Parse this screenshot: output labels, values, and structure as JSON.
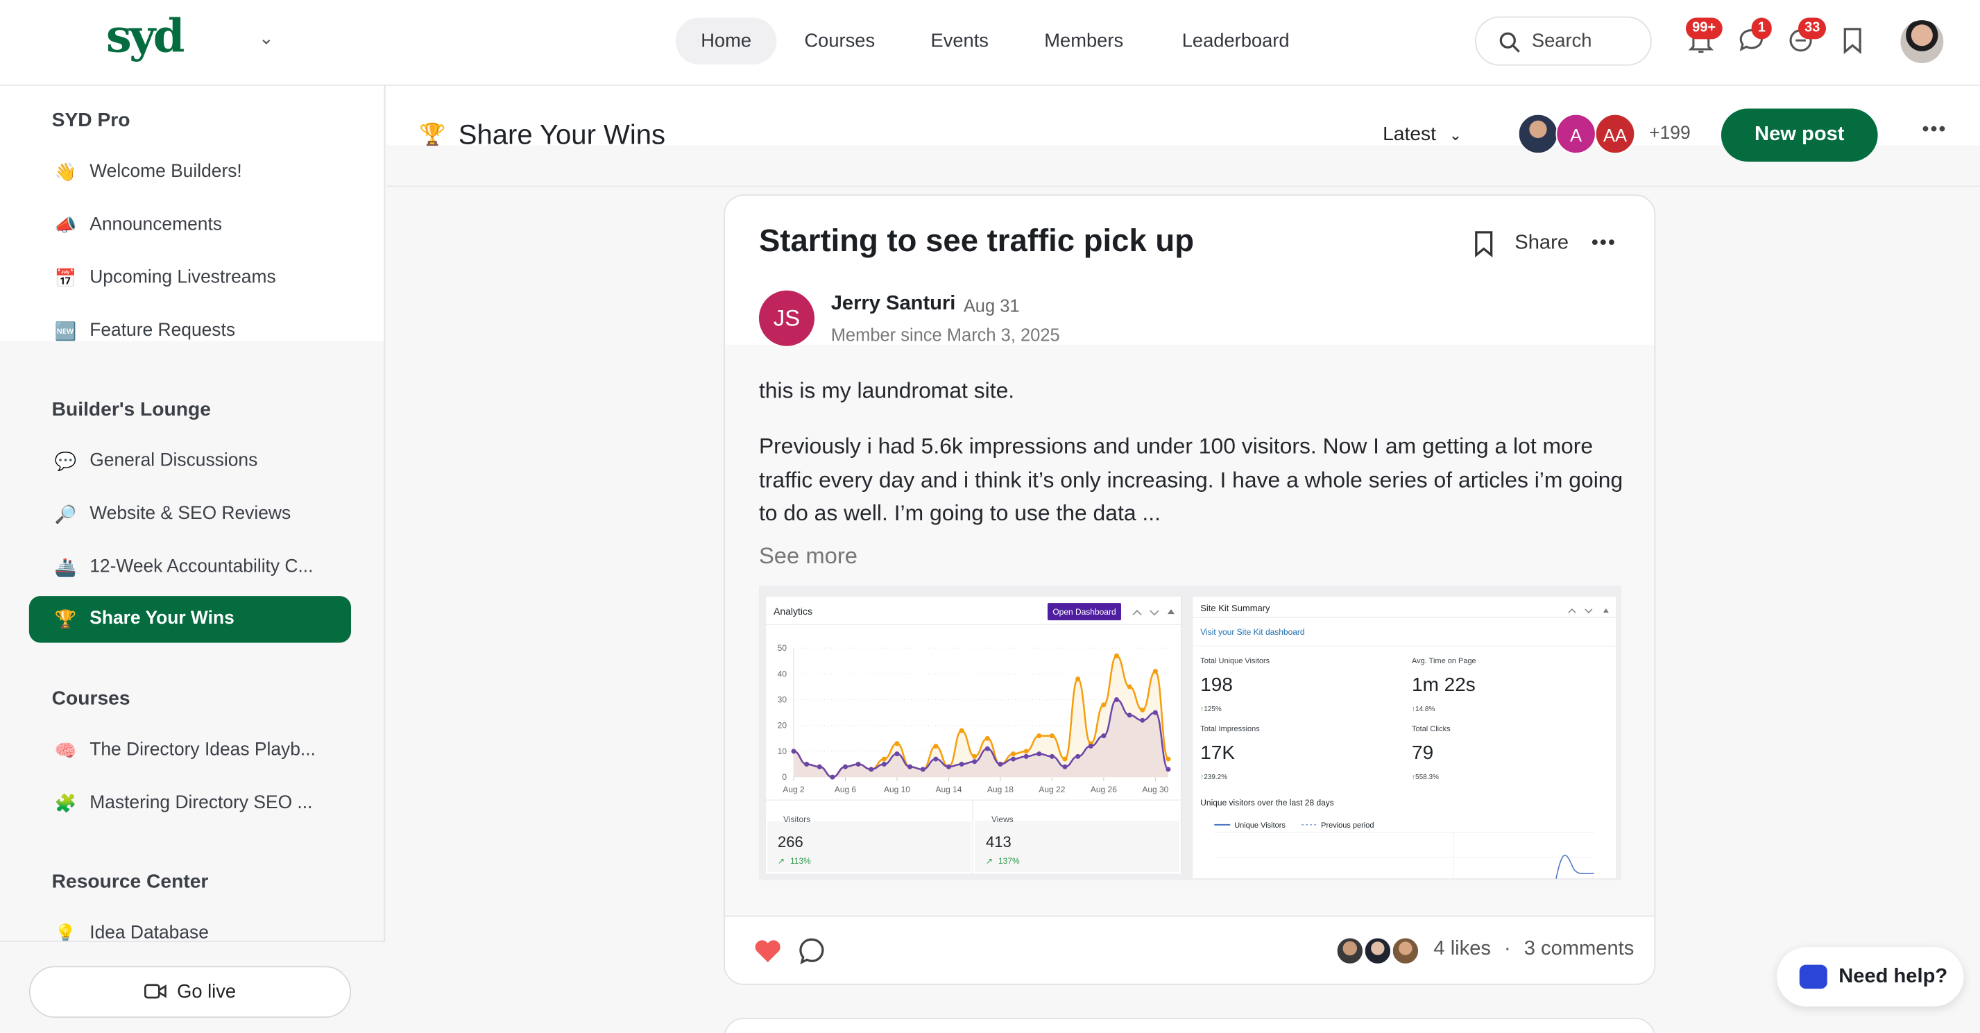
{
  "brand": {
    "logo": "syd",
    "accent": "#046c3f"
  },
  "nav": {
    "items": [
      {
        "label": "Home",
        "active": true
      },
      {
        "label": "Courses"
      },
      {
        "label": "Events"
      },
      {
        "label": "Members"
      },
      {
        "label": "Leaderboard"
      }
    ],
    "search_placeholder": "Search",
    "badges": {
      "notifications": "99+",
      "messages": "1",
      "chats": "33"
    }
  },
  "sidebar": {
    "sections": [
      {
        "title": "SYD Pro",
        "items": [
          {
            "icon": "👋",
            "label": "Welcome Builders!"
          },
          {
            "icon": "📣",
            "label": "Announcements"
          },
          {
            "icon": "📅",
            "label": "Upcoming Livestreams"
          },
          {
            "icon": "🆕",
            "label": "Feature Requests"
          }
        ]
      },
      {
        "title": "Builder's Lounge",
        "items": [
          {
            "icon": "💬",
            "label": "General Discussions"
          },
          {
            "icon": "🔎",
            "label": "Website & SEO Reviews"
          },
          {
            "icon": "🚢",
            "label": "12-Week Accountability C..."
          },
          {
            "icon": "🏆",
            "label": "Share Your Wins",
            "active": true
          }
        ]
      },
      {
        "title": "Courses",
        "items": [
          {
            "icon": "🧠",
            "label": "The Directory Ideas Playb..."
          },
          {
            "icon": "🧩",
            "label": "Mastering Directory SEO ..."
          }
        ]
      },
      {
        "title": "Resource Center",
        "items": [
          {
            "icon": "💡",
            "label": "Idea Database"
          }
        ]
      }
    ],
    "go_live": "Go live"
  },
  "space": {
    "icon": "🏆",
    "title": "Share Your Wins",
    "sort": "Latest",
    "member_avatars": [
      "A",
      "AA"
    ],
    "member_count": "+199",
    "new_post": "New post"
  },
  "post": {
    "title": "Starting to see traffic pick up",
    "share": "Share",
    "author": {
      "initials": "JS",
      "name": "Jerry Santuri",
      "date": "Aug 31",
      "member_since": "Member since March 3, 2025"
    },
    "body": [
      "this is my laundromat site.",
      "Previously i had 5.6k impressions and under 100 visitors. Now I am getting a lot more traffic every day and i think it’s only increasing. I have a whole series of articles i’m going to do as well. I’m going to use the data ..."
    ],
    "see_more": "See more",
    "likes": "4 likes",
    "comments": "3 comments",
    "image": {
      "analytics": {
        "title": "Analytics",
        "button": "Open Dashboard",
        "chart_data": {
          "type": "area",
          "x": [
            "Aug 2",
            "Aug 3",
            "Aug 4",
            "Aug 5",
            "Aug 6",
            "Aug 7",
            "Aug 8",
            "Aug 9",
            "Aug 10",
            "Aug 11",
            "Aug 12",
            "Aug 13",
            "Aug 14",
            "Aug 15",
            "Aug 16",
            "Aug 17",
            "Aug 18",
            "Aug 19",
            "Aug 20",
            "Aug 21",
            "Aug 22",
            "Aug 23",
            "Aug 24",
            "Aug 25",
            "Aug 26",
            "Aug 27",
            "Aug 28",
            "Aug 29",
            "Aug 30",
            "Aug 31"
          ],
          "xticks": [
            "Aug 2",
            "Aug 6",
            "Aug 10",
            "Aug 14",
            "Aug 18",
            "Aug 22",
            "Aug 26",
            "Aug 30"
          ],
          "yticks": [
            "0",
            "10",
            "20",
            "30",
            "40",
            "50"
          ],
          "ylim": [
            0,
            50
          ],
          "series": [
            {
              "name": "Views",
              "color": "#f59e0b",
              "values": [
                10,
                5,
                4,
                0,
                4,
                5,
                3,
                7,
                13,
                4,
                3,
                12,
                4,
                18,
                8,
                15,
                5,
                9,
                10,
                16,
                16,
                7,
                38,
                13,
                28,
                47,
                35,
                26,
                41,
                7
              ]
            },
            {
              "name": "Visitors",
              "color": "#6b46a8",
              "values": [
                10,
                5,
                4,
                0,
                4,
                5,
                3,
                5,
                9,
                4,
                3,
                7,
                4,
                5,
                6,
                11,
                5,
                7,
                8,
                9,
                8,
                4,
                8,
                12,
                16,
                30,
                24,
                22,
                25,
                3
              ]
            }
          ]
        },
        "stats": [
          {
            "label": "Visitors",
            "value": "266",
            "change": "113%"
          },
          {
            "label": "Views",
            "value": "413",
            "change": "137%"
          }
        ]
      },
      "sitekit": {
        "title": "Site Kit Summary",
        "link": "Visit your Site Kit dashboard",
        "metrics": [
          {
            "label": "Total Unique Visitors",
            "value": "198",
            "change": "125%"
          },
          {
            "label": "Avg. Time on Page",
            "value": "1m 22s",
            "change": "14.8%"
          },
          {
            "label": "Total Impressions",
            "value": "17K",
            "change": "239.2%"
          },
          {
            "label": "Total Clicks",
            "value": "79",
            "change": "558.3%"
          }
        ],
        "chart_title": "Unique visitors over the last 28 days",
        "legend": [
          "Unique Visitors",
          "Previous period"
        ]
      }
    }
  },
  "help": "Need help?"
}
